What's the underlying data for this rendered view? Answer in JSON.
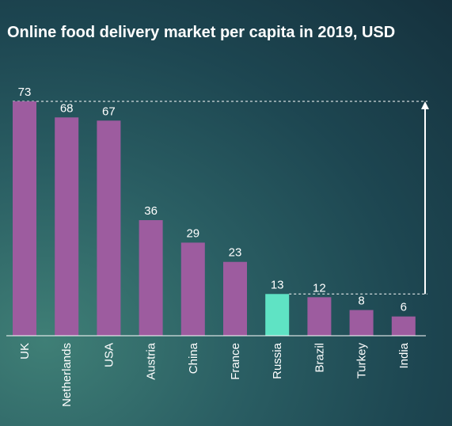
{
  "title": "Online food delivery market per capita in 2019, USD",
  "colors": {
    "bar": "#9d5c9f",
    "highlight": "#5fe3c4",
    "text": "#ffffff"
  },
  "chart_data": {
    "type": "bar",
    "title": "Online food delivery market per capita in 2019, USD",
    "categories": [
      "UK",
      "Netherlands",
      "USA",
      "Austria",
      "China",
      "France",
      "Russia",
      "Brazil",
      "Turkey",
      "India"
    ],
    "values": [
      73,
      68,
      67,
      36,
      29,
      23,
      13,
      12,
      8,
      6
    ],
    "highlight_category": "Russia",
    "ylim": [
      0,
      73
    ],
    "grid": false,
    "legend": "none",
    "annotation": "arrow spanning from Russia level (13) up to UK level (73)"
  }
}
